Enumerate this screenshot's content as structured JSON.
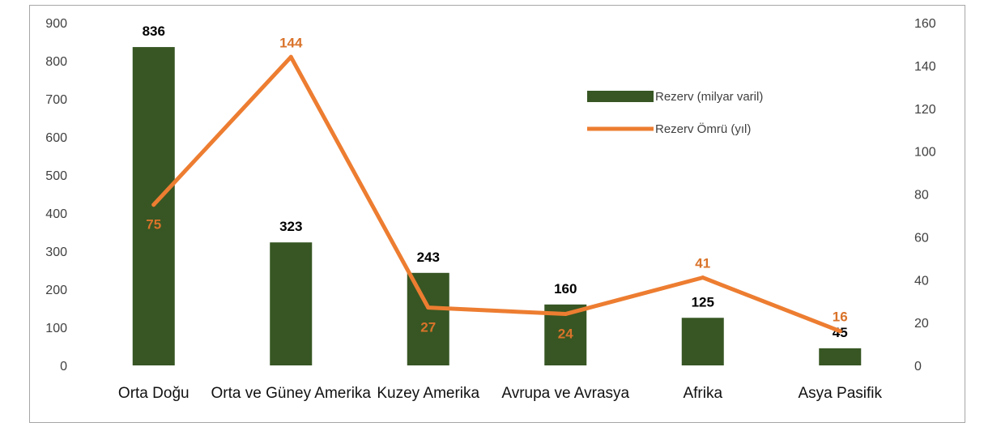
{
  "chart_data": {
    "type": "bar",
    "categories": [
      "Orta Doğu",
      "Orta ve Güney Amerika",
      "Kuzey Amerika",
      "Avrupa ve Avrasya",
      "Afrika",
      "Asya Pasifik"
    ],
    "series": [
      {
        "name": "Rezerv (milyar varil)",
        "type": "bar",
        "axis": "left",
        "color": "#375623",
        "values": [
          836,
          323,
          243,
          160,
          125,
          45
        ]
      },
      {
        "name": "Rezerv Ömrü (yıl)",
        "type": "line",
        "axis": "right",
        "color": "#ed7d31",
        "values": [
          75,
          144,
          27,
          24,
          41,
          16
        ]
      }
    ],
    "ylim_left": [
      0,
      900
    ],
    "yticks_left": [
      "0",
      "100",
      "200",
      "300",
      "400",
      "500",
      "600",
      "700",
      "800",
      "900"
    ],
    "ylim_right": [
      0,
      160
    ],
    "yticks_right": [
      "0",
      "20",
      "40",
      "60",
      "80",
      "100",
      "120",
      "140",
      "160"
    ],
    "grid": false,
    "legend_position": "upper-right"
  }
}
